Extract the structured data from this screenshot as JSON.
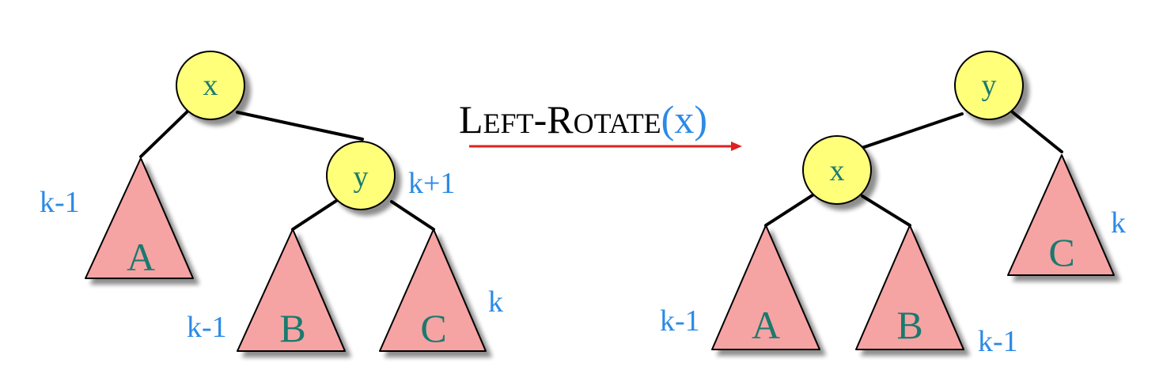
{
  "colors": {
    "node_fill": "#ffff7a",
    "subtree_fill": "#f6a3a3",
    "label_color": "#1a7a6e",
    "height_color": "#2b8ae6",
    "arrow_color": "#e02020",
    "edge_color": "#000000",
    "operation_arg_color": "#2b8ae6"
  },
  "operation": {
    "name": "Left-Rotate",
    "name_caps": "L",
    "name_small_1": "EFT",
    "dash": "-",
    "name_caps_2": "R",
    "name_small_2": "OTATE",
    "open_paren": "(",
    "arg": "x",
    "close_paren": ")"
  },
  "before": {
    "nodes": [
      {
        "id": "x",
        "label": "x"
      },
      {
        "id": "y",
        "label": "y",
        "height": "k+1"
      }
    ],
    "subtrees": [
      {
        "id": "A",
        "label": "A",
        "height": "k-1"
      },
      {
        "id": "B",
        "label": "B",
        "height": "k-1"
      },
      {
        "id": "C",
        "label": "C",
        "height": "k"
      }
    ]
  },
  "after": {
    "nodes": [
      {
        "id": "y",
        "label": "y"
      },
      {
        "id": "x",
        "label": "x"
      }
    ],
    "subtrees": [
      {
        "id": "A",
        "label": "A",
        "height": "k-1"
      },
      {
        "id": "B",
        "label": "B",
        "height": "k-1"
      },
      {
        "id": "C",
        "label": "C",
        "height": "k"
      }
    ]
  }
}
